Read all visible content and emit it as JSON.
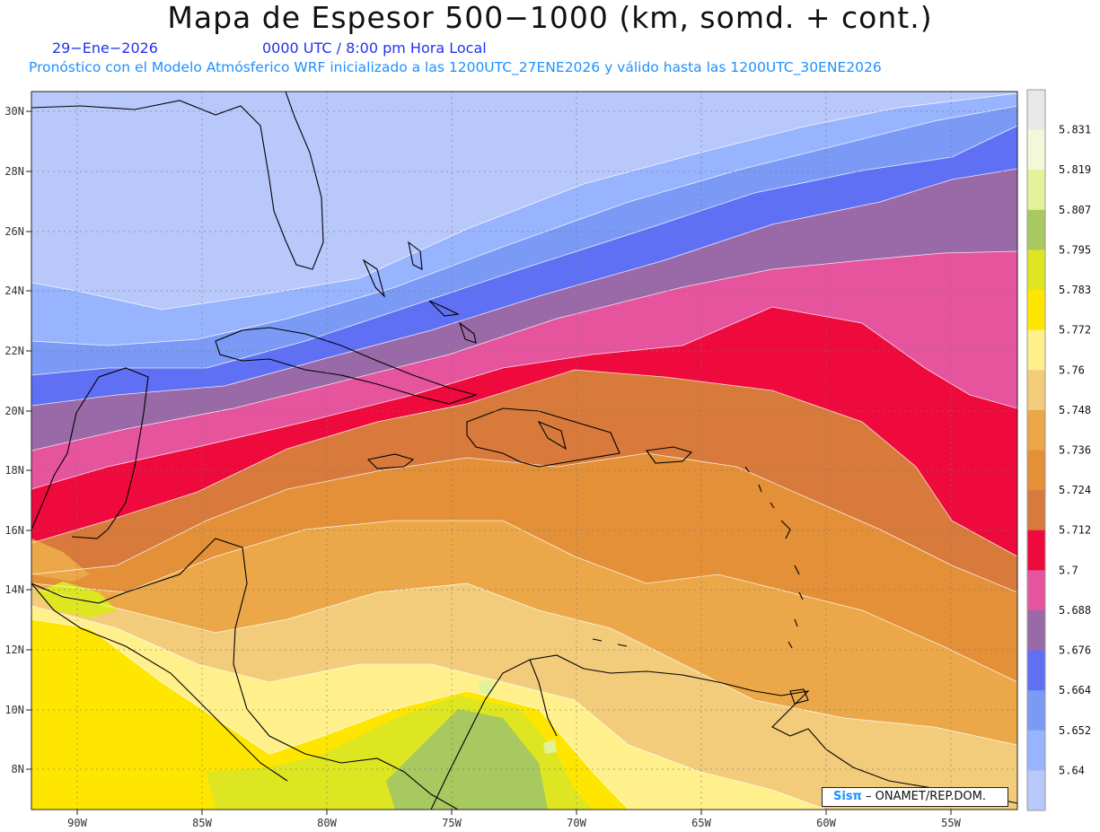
{
  "header": {
    "title": "Mapa de Espesor 500−1000 (km, somd. + cont.)",
    "date": "29−Ene−2026",
    "time": "0000 UTC / 8:00 pm Hora Local",
    "description": "Pronóstico con el Modelo Atmósferico WRF inicializado a las 1200UTC_27ENE2026 y válido hasta las  1200UTC_30ENE2026"
  },
  "axes": {
    "lon_labels": [
      "90W",
      "85W",
      "80W",
      "75W",
      "70W",
      "65W",
      "60W",
      "55W"
    ],
    "lat_labels": [
      "30N",
      "28N",
      "26N",
      "24N",
      "22N",
      "20N",
      "18N",
      "16N",
      "14N",
      "12N",
      "10N",
      "8N"
    ]
  },
  "colorbar": {
    "labels": [
      "5.831",
      "5.819",
      "5.807",
      "5.795",
      "5.783",
      "5.772",
      "5.76",
      "5.748",
      "5.736",
      "5.724",
      "5.712",
      "5.7",
      "5.688",
      "5.676",
      "5.664",
      "5.652",
      "5.64"
    ],
    "colors": [
      "#e8e8e8",
      "#f4f8d8",
      "#e2f29a",
      "#a8c860",
      "#dde620",
      "#ffe600",
      "#fff08c",
      "#f2cc7a",
      "#eca848",
      "#e39038",
      "#d87a3c",
      "#ee0a3c",
      "#e6549e",
      "#9a6aa8",
      "#6070f5",
      "#7a9af5",
      "#98b4ff",
      "#b8c8fa"
    ]
  },
  "credit": {
    "logo": "Sisπ",
    "text": " – ONAMET/REP.DOM."
  }
}
